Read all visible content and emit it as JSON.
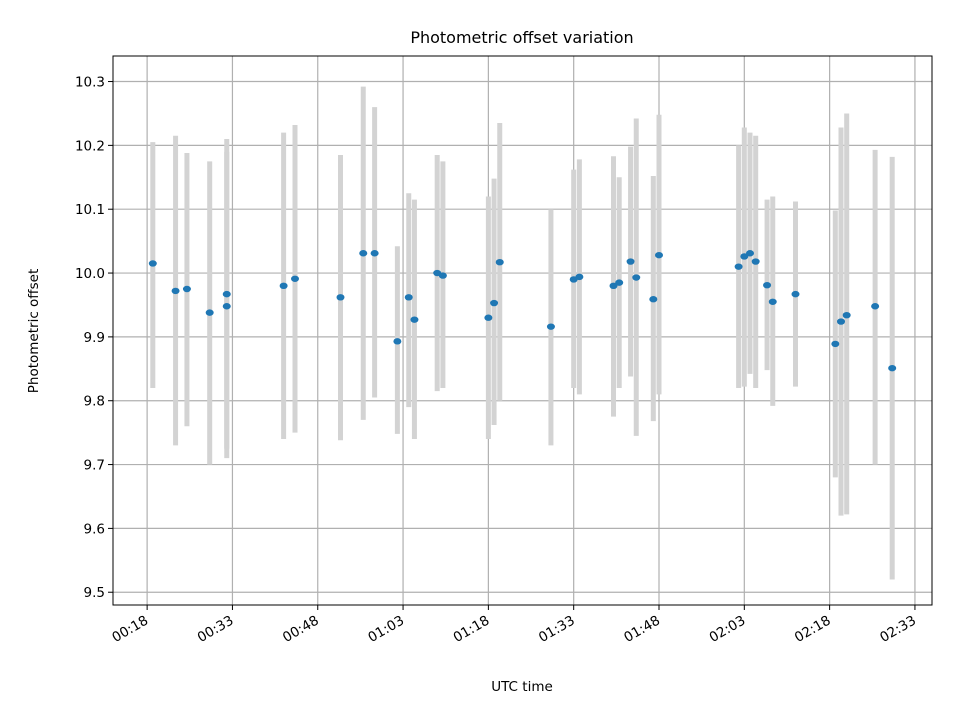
{
  "chart_data": {
    "type": "scatter",
    "title": "Photometric offset variation",
    "xlabel": "UTC time",
    "ylabel": "Photometric offset",
    "x_ticks": [
      "00:18",
      "00:33",
      "00:48",
      "01:03",
      "01:18",
      "01:33",
      "01:48",
      "02:03",
      "02:18",
      "02:33"
    ],
    "y_ticks": [
      "9.5",
      "9.6",
      "9.7",
      "9.8",
      "9.9",
      "10.0",
      "10.1",
      "10.2",
      "10.3"
    ],
    "xlim": [
      "00:12",
      "02:36"
    ],
    "ylim": [
      9.48,
      10.34
    ],
    "grid": true,
    "colors": {
      "point": "#1f77b4",
      "errorbar": "#d3d3d3",
      "grid": "#b0b0b0"
    },
    "series": [
      {
        "points": [
          {
            "t": "00:19",
            "y": 10.015,
            "lo": 9.82,
            "hi": 10.205
          },
          {
            "t": "00:23",
            "y": 9.972,
            "lo": 9.73,
            "hi": 10.215
          },
          {
            "t": "00:25",
            "y": 9.975,
            "lo": 9.76,
            "hi": 10.188
          },
          {
            "t": "00:29",
            "y": 9.938,
            "lo": 9.7,
            "hi": 10.175
          },
          {
            "t": "00:32",
            "y": 9.948,
            "lo": 9.71,
            "hi": 10.19
          },
          {
            "t": "00:32",
            "y": 9.967,
            "lo": 9.725,
            "hi": 10.21
          },
          {
            "t": "00:42",
            "y": 9.98,
            "lo": 9.74,
            "hi": 10.22
          },
          {
            "t": "00:44",
            "y": 9.991,
            "lo": 9.75,
            "hi": 10.232
          },
          {
            "t": "00:52",
            "y": 9.962,
            "lo": 9.738,
            "hi": 10.185
          },
          {
            "t": "00:56",
            "y": 10.031,
            "lo": 9.77,
            "hi": 10.292
          },
          {
            "t": "00:58",
            "y": 10.031,
            "lo": 9.805,
            "hi": 10.26
          },
          {
            "t": "01:02",
            "y": 9.893,
            "lo": 9.748,
            "hi": 10.042
          },
          {
            "t": "01:04",
            "y": 9.962,
            "lo": 9.79,
            "hi": 10.125
          },
          {
            "t": "01:05",
            "y": 9.927,
            "lo": 9.74,
            "hi": 10.115
          },
          {
            "t": "01:09",
            "y": 10.0,
            "lo": 9.815,
            "hi": 10.185
          },
          {
            "t": "01:10",
            "y": 9.996,
            "lo": 9.82,
            "hi": 10.175
          },
          {
            "t": "01:18",
            "y": 9.93,
            "lo": 9.74,
            "hi": 10.12
          },
          {
            "t": "01:19",
            "y": 9.953,
            "lo": 9.762,
            "hi": 10.148
          },
          {
            "t": "01:20",
            "y": 10.017,
            "lo": 9.8,
            "hi": 10.235
          },
          {
            "t": "01:29",
            "y": 9.916,
            "lo": 9.73,
            "hi": 10.1
          },
          {
            "t": "01:33",
            "y": 9.99,
            "lo": 9.82,
            "hi": 10.162
          },
          {
            "t": "01:34",
            "y": 9.994,
            "lo": 9.81,
            "hi": 10.178
          },
          {
            "t": "01:40",
            "y": 9.98,
            "lo": 9.775,
            "hi": 10.183
          },
          {
            "t": "01:41",
            "y": 9.985,
            "lo": 9.82,
            "hi": 10.15
          },
          {
            "t": "01:43",
            "y": 10.018,
            "lo": 9.838,
            "hi": 10.198
          },
          {
            "t": "01:44",
            "y": 9.993,
            "lo": 9.745,
            "hi": 10.242
          },
          {
            "t": "01:47",
            "y": 9.959,
            "lo": 9.768,
            "hi": 10.152
          },
          {
            "t": "01:48",
            "y": 10.028,
            "lo": 9.81,
            "hi": 10.248
          },
          {
            "t": "02:02",
            "y": 10.01,
            "lo": 9.82,
            "hi": 10.2
          },
          {
            "t": "02:03",
            "y": 10.026,
            "lo": 9.822,
            "hi": 10.228
          },
          {
            "t": "02:04",
            "y": 10.031,
            "lo": 9.842,
            "hi": 10.22
          },
          {
            "t": "02:05",
            "y": 10.018,
            "lo": 9.82,
            "hi": 10.215
          },
          {
            "t": "02:07",
            "y": 9.981,
            "lo": 9.848,
            "hi": 10.115
          },
          {
            "t": "02:08",
            "y": 9.955,
            "lo": 9.792,
            "hi": 10.12
          },
          {
            "t": "02:12",
            "y": 9.967,
            "lo": 9.822,
            "hi": 10.112
          },
          {
            "t": "02:19",
            "y": 9.889,
            "lo": 9.68,
            "hi": 10.098
          },
          {
            "t": "02:20",
            "y": 9.924,
            "lo": 9.62,
            "hi": 10.228
          },
          {
            "t": "02:21",
            "y": 9.934,
            "lo": 9.622,
            "hi": 10.25
          },
          {
            "t": "02:26",
            "y": 9.948,
            "lo": 9.7,
            "hi": 10.193
          },
          {
            "t": "02:29",
            "y": 9.851,
            "lo": 9.52,
            "hi": 10.182
          }
        ]
      }
    ]
  }
}
